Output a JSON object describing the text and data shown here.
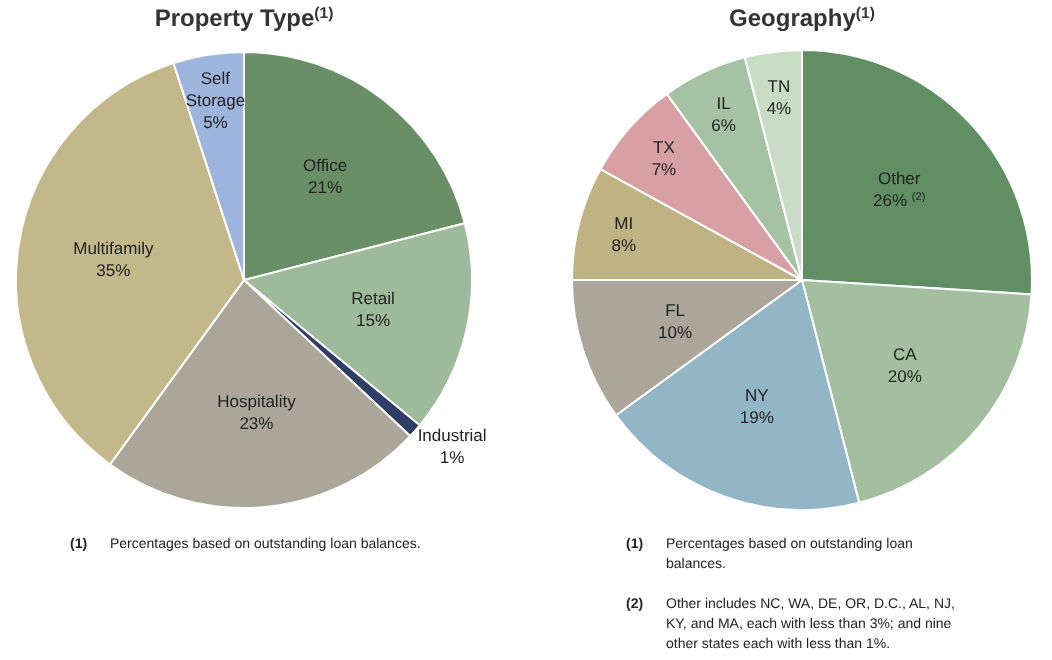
{
  "chart_data": [
    {
      "type": "pie",
      "title": "Property Type$^{(1)}$",
      "categories": [
        "Office",
        "Retail",
        "Industrial",
        "Hospitality",
        "Multifamily",
        "Self Storage"
      ],
      "values": [
        21,
        15,
        1,
        23,
        35,
        5
      ],
      "colors": [
        "#6a8f66",
        "#9dbb9a",
        "#2f3e66",
        "#aaa79a",
        "#c2b88a",
        "#9db4dc"
      ],
      "value_labels": [
        "21%",
        "15%",
        "1%",
        "23%",
        "35%",
        "5%"
      ],
      "annotations": [
        "(1) Percentages based on outstanding loan balances."
      ]
    },
    {
      "type": "pie",
      "title": "Geography$^{(1)}$",
      "categories": [
        "Other",
        "CA",
        "NY",
        "FL",
        "MI",
        "TX",
        "IL",
        "TN"
      ],
      "values": [
        26,
        20,
        19,
        10,
        8,
        7,
        6,
        4
      ],
      "colors": [
        "#5f8f62",
        "#a3bf9f",
        "#93b6c6",
        "#aca69a",
        "#bfb383",
        "#d8a0a4",
        "#a6c2a4",
        "#c9dcc6"
      ],
      "value_labels": [
        "26% $^{(2)}$",
        "20%",
        "19%",
        "10%",
        "8%",
        "7%",
        "6%",
        "4%"
      ],
      "annotations": [
        "(1) Percentages based on outstanding loan balances.",
        "(2) Other includes NC, WA, DE, OR, D.C., AL, NJ, KY, and MA, each with less than 3%; and nine other states each with less than 1%."
      ]
    }
  ]
}
